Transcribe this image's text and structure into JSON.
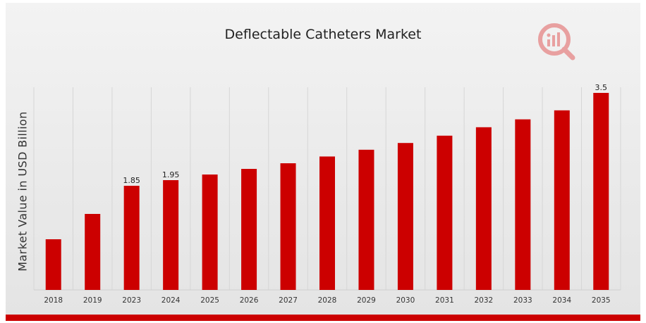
{
  "chart_data": {
    "type": "bar",
    "title": "Deflectable Catheters Market",
    "xlabel": "",
    "ylabel": "Market Value in USD Billion",
    "categories": [
      "2018",
      "2019",
      "2023",
      "2024",
      "2025",
      "2026",
      "2027",
      "2028",
      "2029",
      "2030",
      "2031",
      "2032",
      "2033",
      "2034",
      "2035"
    ],
    "values": [
      0.9,
      1.35,
      1.85,
      1.95,
      2.05,
      2.15,
      2.25,
      2.37,
      2.49,
      2.61,
      2.74,
      2.89,
      3.03,
      3.19,
      3.5
    ],
    "data_labels": [
      {
        "index": 2,
        "text": "1.85"
      },
      {
        "index": 3,
        "text": "1.95"
      },
      {
        "index": 14,
        "text": "3.5"
      }
    ],
    "ylim": [
      0,
      3.6
    ],
    "grid": "vertical",
    "legend": "none",
    "bar_color": "#cc0000"
  },
  "colors": {
    "accent": "#cc0000",
    "logo": "#e8a0a0"
  },
  "logo": {
    "icon": "brand-logo-icon"
  }
}
